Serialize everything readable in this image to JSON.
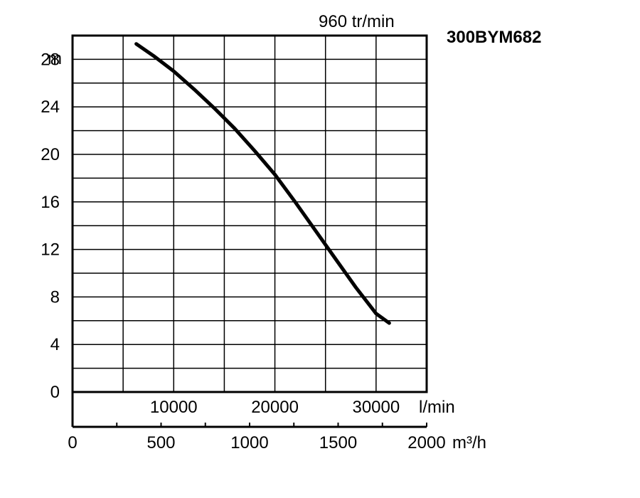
{
  "chart_data": {
    "type": "line",
    "title": "300BYM682",
    "subtitle": "960 tr/min",
    "y_unit": "m",
    "x_unit_primary": "l/min",
    "x_unit_secondary": "m³/h",
    "ylim": [
      0,
      30
    ],
    "xlim_lmin": [
      0,
      35000
    ],
    "xlim_m3h": [
      0,
      2000
    ],
    "y_ticks": [
      "0",
      "4",
      "8",
      "12",
      "16",
      "20",
      "24",
      "28"
    ],
    "x_ticks_lmin": [
      "10000",
      "20000",
      "30000"
    ],
    "x_ticks_m3h": [
      "0",
      "500",
      "1000",
      "1500",
      "2000"
    ],
    "grid": true,
    "series": [
      {
        "x": [
          6300,
          8000,
          10000,
          12000,
          14000,
          16000,
          18000,
          20000,
          22000,
          24000,
          26000,
          28000,
          30000,
          31300
        ],
        "y": [
          29.3,
          28.3,
          27.0,
          25.5,
          23.9,
          22.2,
          20.3,
          18.3,
          16.0,
          13.6,
          11.2,
          8.8,
          6.6,
          5.8
        ]
      }
    ]
  }
}
